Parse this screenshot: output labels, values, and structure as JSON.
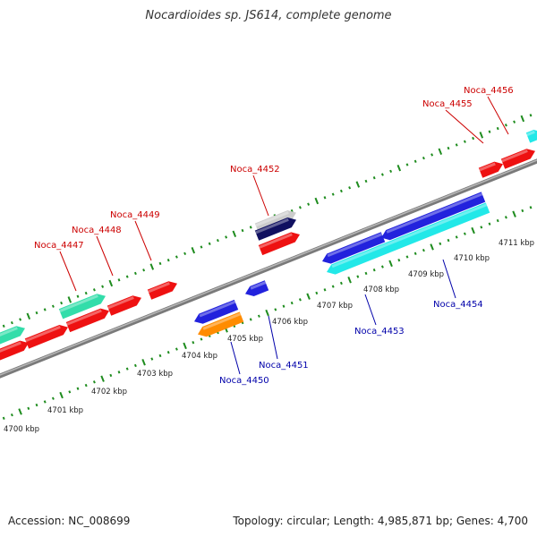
{
  "title": "Nocardioides sp. JS614, complete genome",
  "footer": {
    "accession": "Accession: NC_008699",
    "info": "Topology: circular; Length: 4,985,871 bp; Genes: 4,700"
  },
  "colors": {
    "backbone": "#7a7a7a",
    "tick": "#1e8c1e",
    "label_forward": "#cc0000",
    "label_reverse": "#0000aa",
    "gene_red": "#ee1111",
    "gene_green": "#33ddaa",
    "gene_blue": "#2222dd",
    "gene_cyan": "#22e8e8",
    "gene_orange": "#ff8c00",
    "gene_navy": "#101060",
    "gene_grey": "#cccccc"
  },
  "scale_labels": [
    "4700 kbp",
    "4701 kbp",
    "4702 kbp",
    "4703 kbp",
    "4704 kbp",
    "4705 kbp",
    "4706 kbp",
    "4707 kbp",
    "4708 kbp",
    "4709 kbp",
    "4710 kbp",
    "4711 kbp"
  ],
  "genes": {
    "forward": [
      {
        "label": "Noca_4447",
        "color": "gene_green"
      },
      {
        "label": "Noca_4448",
        "color": "gene_red"
      },
      {
        "label": "Noca_4449",
        "color": "gene_red"
      },
      {
        "label": "Noca_4452",
        "color": "gene_red"
      },
      {
        "label": "Noca_4455",
        "color": "gene_red"
      },
      {
        "label": "Noca_4456",
        "color": "gene_red"
      }
    ],
    "reverse": [
      {
        "label": "Noca_4450",
        "color": "gene_orange"
      },
      {
        "label": "Noca_4451",
        "color": "gene_blue"
      },
      {
        "label": "Noca_4453",
        "color": "gene_cyan"
      },
      {
        "label": "Noca_4454",
        "color": "gene_blue"
      }
    ]
  }
}
